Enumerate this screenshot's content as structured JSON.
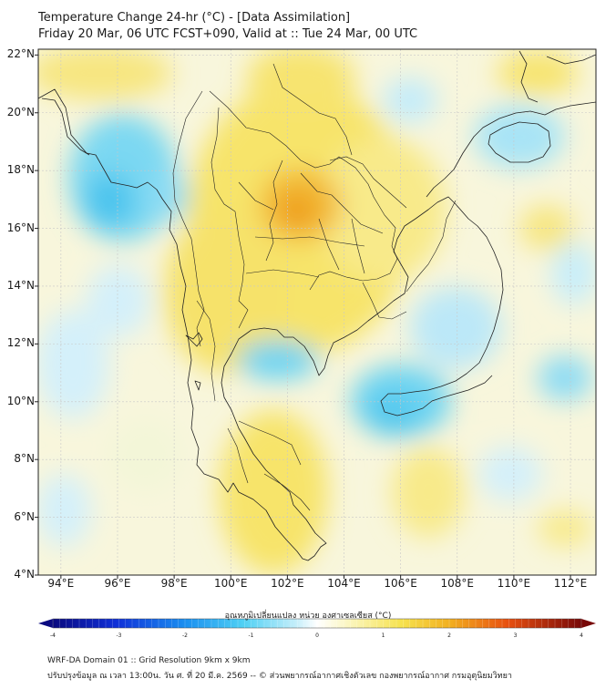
{
  "header": {
    "title_line1": "Temperature Change 24-hr (°C) - [Data Assimilation]",
    "title_line2": "Friday 20 Mar, 06 UTC FCST+090, Valid at :: Tue 24 Mar, 00 UTC"
  },
  "map": {
    "lat_labels": [
      "22°N",
      "20°N",
      "18°N",
      "16°N",
      "14°N",
      "12°N",
      "10°N",
      "8°N",
      "6°N",
      "4°N"
    ],
    "lon_labels": [
      "94°E",
      "96°E",
      "98°E",
      "100°E",
      "102°E",
      "104°E",
      "106°E",
      "108°E",
      "110°E",
      "112°E"
    ],
    "lat_range": [
      4,
      22.2
    ],
    "lon_range": [
      93.2,
      112.9
    ]
  },
  "colorbar": {
    "label": "อุณหภูมิเปลี่ยนแปลง หน่วย องศาเซลเซียส (°C)",
    "ticks": [
      "-4",
      "-3",
      "-2",
      "-1",
      "0",
      "1",
      "2",
      "3",
      "4"
    ],
    "range": [
      -4,
      4
    ]
  },
  "footer": {
    "line1": "WRF-DA Domain 01 :: Grid Resolution 9km x 9km",
    "line2": "ปรับปรุงข้อมูล ณ เวลา 13:00น. วัน ศ. ที่ 20 มี.ค. 2569 -- © ส่วนพยากรณ์อากาศเชิงตัวเลข กองพยากรณ์อากาศ กรมอุตุนิยมวิทยา"
  },
  "colors": {
    "ocean_pale": "#f4f4d8",
    "warm_yellow": "#f6e04a",
    "warm_orange": "#f0a020",
    "cool_blue": "#5cd0f0",
    "pale_blue": "#c4ecfa",
    "coastline": "#222222",
    "grid": "#c8c8c8"
  }
}
